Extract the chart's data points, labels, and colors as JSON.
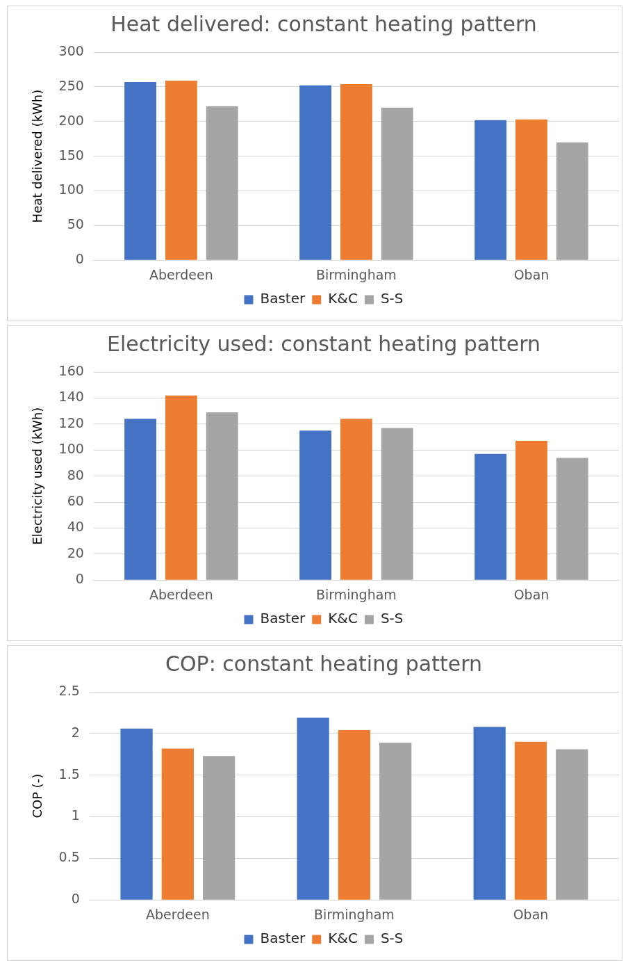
{
  "chart_data": [
    {
      "type": "bar",
      "title": "Heat delivered: constant heating pattern",
      "ylabel": "Heat delivered (kWh)",
      "categories": [
        "Aberdeen",
        "Birmingham",
        "Oban"
      ],
      "series": [
        {
          "name": "Baster",
          "color": "#4472c4",
          "values": [
            257,
            252,
            202
          ]
        },
        {
          "name": "K&C",
          "color": "#ed7d31",
          "values": [
            259,
            254,
            203
          ]
        },
        {
          "name": "S-S",
          "color": "#a5a5a5",
          "values": [
            222,
            220,
            170
          ]
        }
      ],
      "ylim": [
        0,
        300
      ],
      "yticks": [
        0,
        50,
        100,
        150,
        200,
        250,
        300
      ],
      "grid": "y",
      "legend": "bottom"
    },
    {
      "type": "bar",
      "title": "Electricity used: constant heating pattern",
      "ylabel": "Electricity used (kWh)",
      "categories": [
        "Aberdeen",
        "Birmingham",
        "Oban"
      ],
      "series": [
        {
          "name": "Baster",
          "color": "#4472c4",
          "values": [
            124,
            115,
            97
          ]
        },
        {
          "name": "K&C",
          "color": "#ed7d31",
          "values": [
            142,
            124,
            107
          ]
        },
        {
          "name": "S-S",
          "color": "#a5a5a5",
          "values": [
            129,
            117,
            94
          ]
        }
      ],
      "ylim": [
        0,
        160
      ],
      "yticks": [
        0,
        20,
        40,
        60,
        80,
        100,
        120,
        140,
        160
      ],
      "grid": "y",
      "legend": "bottom"
    },
    {
      "type": "bar",
      "title": "COP: constant heating pattern",
      "ylabel": "COP (-)",
      "categories": [
        "Aberdeen",
        "Birmingham",
        "Oban"
      ],
      "series": [
        {
          "name": "Baster",
          "color": "#4472c4",
          "values": [
            2.06,
            2.19,
            2.08
          ]
        },
        {
          "name": "K&C",
          "color": "#ed7d31",
          "values": [
            1.82,
            2.04,
            1.9
          ]
        },
        {
          "name": "S-S",
          "color": "#a5a5a5",
          "values": [
            1.73,
            1.89,
            1.81
          ]
        }
      ],
      "ylim": [
        0,
        2.5
      ],
      "yticks": [
        0,
        0.5,
        1,
        1.5,
        2,
        2.5
      ],
      "grid": "y",
      "legend": "bottom"
    }
  ]
}
